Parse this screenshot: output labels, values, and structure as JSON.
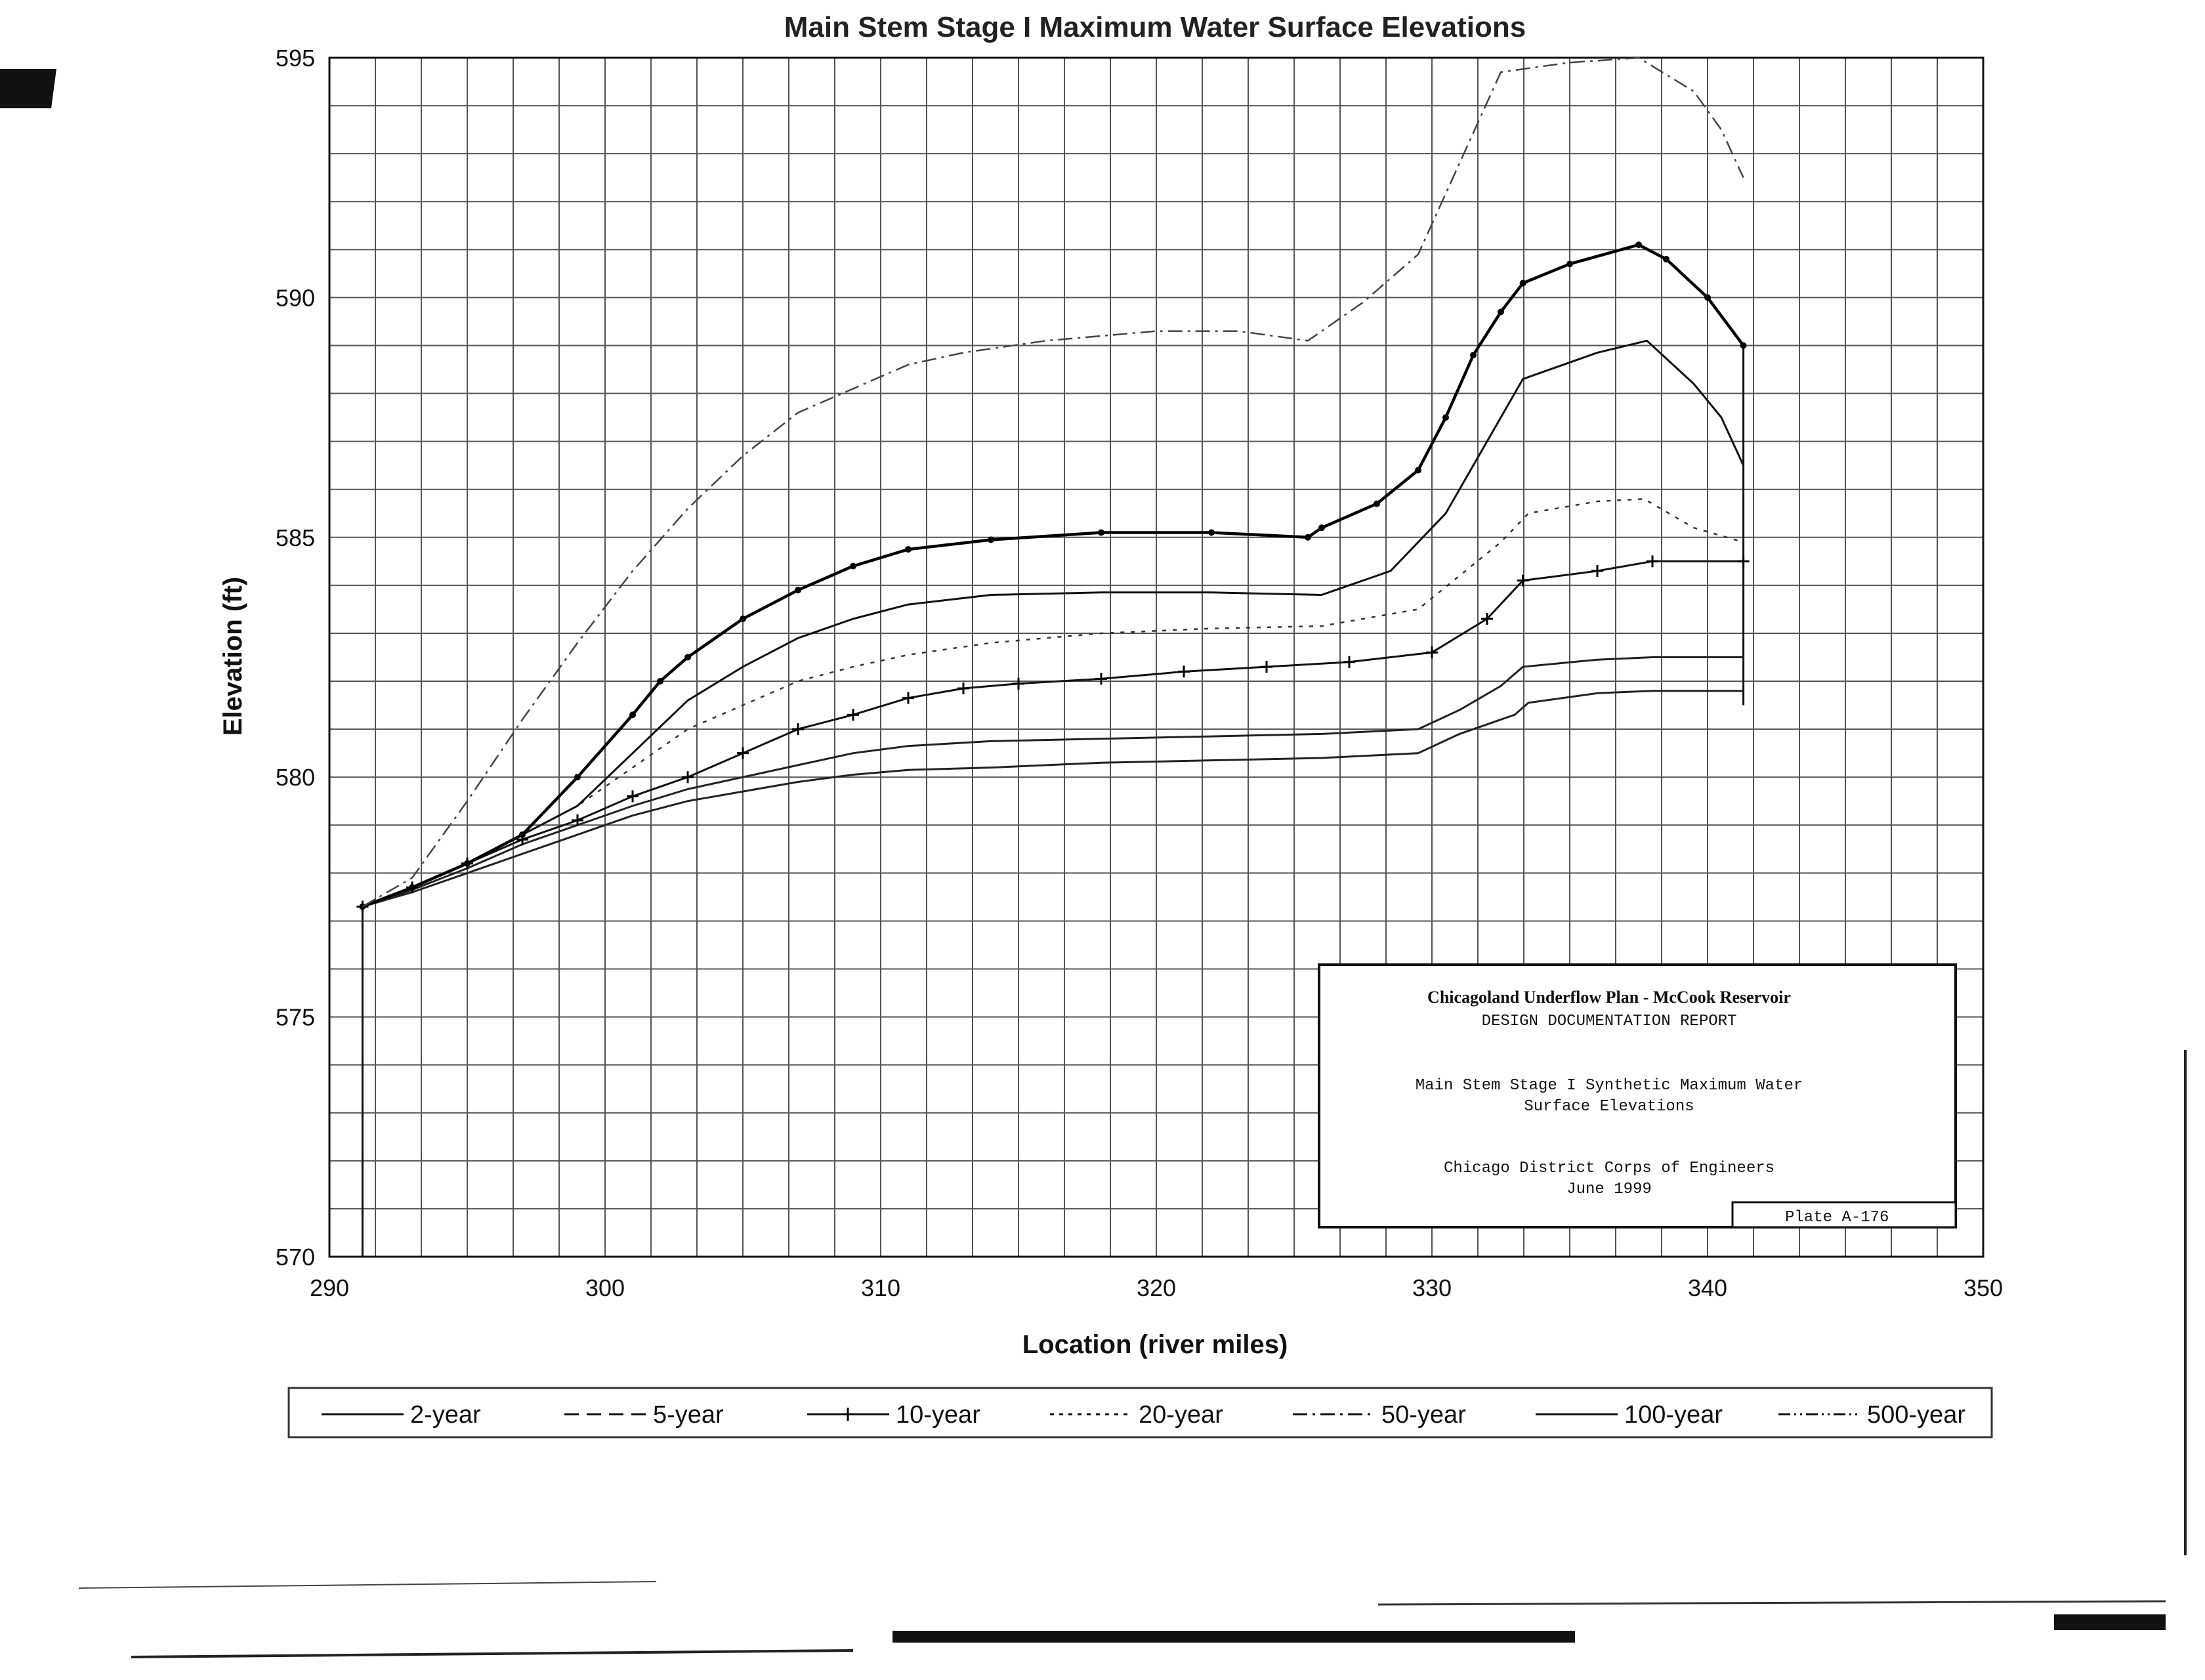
{
  "chart_data": {
    "type": "line",
    "title": "Main Stem Stage I Maximum Water Surface Elevations",
    "xlabel": "Location (river miles)",
    "ylabel": "Elevation (ft)",
    "xlim": [
      290,
      350
    ],
    "ylim": [
      570,
      595
    ],
    "x_ticks": [
      "290",
      "300",
      "310",
      "320",
      "330",
      "340",
      "350"
    ],
    "y_ticks": [
      "570",
      "575",
      "580",
      "585",
      "590",
      "595"
    ],
    "grid": true,
    "legend_position": "bottom",
    "series": [
      {
        "name": "2-year",
        "color": "#222222",
        "x": [
          291.2,
          293,
          295,
          297,
          299,
          301,
          303,
          305,
          307,
          309,
          311,
          314,
          318,
          322,
          326,
          329.5,
          331,
          333,
          333.5,
          336,
          338,
          341.3
        ],
        "y": [
          577.3,
          577.6,
          578.0,
          578.4,
          578.8,
          579.2,
          579.5,
          579.7,
          579.9,
          580.05,
          580.15,
          580.2,
          580.3,
          580.35,
          580.4,
          580.5,
          580.9,
          581.3,
          581.55,
          581.75,
          581.8,
          581.8
        ]
      },
      {
        "name": "5-year",
        "color": "#222222",
        "x": [
          291.2,
          293,
          295,
          297,
          299,
          301,
          303,
          305,
          307,
          309,
          311,
          314,
          318,
          322,
          326,
          329.5,
          331,
          332.5,
          333.3,
          336,
          338,
          341.3
        ],
        "y": [
          577.3,
          577.65,
          578.1,
          578.6,
          579.0,
          579.4,
          579.75,
          580.0,
          580.25,
          580.5,
          580.65,
          580.75,
          580.8,
          580.85,
          580.9,
          581.0,
          581.4,
          581.9,
          582.3,
          582.45,
          582.5,
          582.5
        ]
      },
      {
        "name": "10-year",
        "color": "#111111",
        "markers": true,
        "x": [
          291.2,
          293,
          295,
          297,
          299,
          301,
          303,
          305,
          307,
          309,
          311,
          313,
          315,
          318,
          321,
          324,
          327,
          330,
          332,
          333.3,
          336,
          338,
          341.3
        ],
        "y": [
          577.3,
          577.7,
          578.2,
          578.7,
          579.1,
          579.6,
          580.0,
          580.5,
          581.0,
          581.3,
          581.65,
          581.85,
          581.95,
          582.05,
          582.2,
          582.3,
          582.4,
          582.6,
          583.3,
          584.1,
          584.3,
          584.5,
          584.5
        ]
      },
      {
        "name": "20-year",
        "color": "#333333",
        "x": [
          291.2,
          293,
          295,
          297,
          299,
          301,
          303,
          305,
          307,
          309,
          311,
          314,
          318,
          322,
          326,
          329.5,
          331,
          332.5,
          333.5,
          336,
          337.7,
          339.5,
          341.3
        ],
        "y": [
          577.3,
          577.7,
          578.2,
          578.8,
          579.4,
          580.2,
          581.0,
          581.5,
          582.0,
          582.3,
          582.55,
          582.8,
          583.0,
          583.1,
          583.15,
          583.5,
          584.2,
          584.9,
          585.5,
          585.75,
          585.8,
          585.2,
          584.9
        ]
      },
      {
        "name": "50-year",
        "color": "#111111",
        "x": [
          291.2,
          293,
          295,
          297,
          299,
          301,
          303,
          305,
          307,
          309,
          311,
          314,
          318,
          322,
          326,
          328.5,
          330.5,
          332,
          333.3,
          336,
          337.8,
          339.5,
          340.5,
          341.3
        ],
        "y": [
          577.3,
          577.7,
          578.2,
          578.8,
          579.4,
          580.5,
          581.6,
          582.3,
          582.9,
          583.3,
          583.6,
          583.8,
          583.85,
          583.85,
          583.8,
          584.3,
          585.5,
          587.0,
          588.3,
          588.85,
          589.1,
          588.2,
          587.5,
          586.5
        ]
      },
      {
        "name": "100-year",
        "color": "#000000",
        "markers": true,
        "x": [
          291.2,
          293,
          295,
          297,
          299,
          301,
          302,
          303,
          305,
          307,
          309,
          311,
          314,
          318,
          322,
          325.5,
          326,
          328,
          329.5,
          330.5,
          331.5,
          332.5,
          333.3,
          335,
          337.5,
          338.5,
          340,
          341.3
        ],
        "y": [
          577.3,
          577.7,
          578.2,
          578.8,
          580.0,
          581.3,
          582.0,
          582.5,
          583.3,
          583.9,
          584.4,
          584.75,
          584.95,
          585.1,
          585.1,
          585.0,
          585.2,
          585.7,
          586.4,
          587.5,
          588.8,
          589.7,
          590.3,
          590.7,
          591.1,
          590.8,
          590.0,
          589.0
        ]
      },
      {
        "name": "500-year",
        "color": "#444444",
        "x": [
          291.2,
          293,
          295,
          297,
          299,
          301,
          303,
          305,
          307,
          309,
          311,
          313,
          316,
          320,
          323,
          325.5,
          327.5,
          329.5,
          331,
          332.5,
          335,
          337.5,
          339.5,
          340.5,
          341.3
        ],
        "y": [
          577.3,
          577.9,
          579.5,
          581.2,
          582.8,
          584.3,
          585.6,
          586.7,
          587.6,
          588.1,
          588.6,
          588.85,
          589.1,
          589.3,
          589.3,
          589.1,
          589.9,
          590.9,
          592.8,
          594.7,
          594.9,
          595.0,
          594.3,
          593.5,
          592.5
        ]
      }
    ]
  },
  "info_box": {
    "line1": "Chicagoland Underflow Plan - McCook Reservoir",
    "line2": "DESIGN DOCUMENTATION REPORT",
    "line3": "Main Stem Stage I Synthetic Maximum Water",
    "line4": "Surface Elevations",
    "line5": "Chicago District  Corps of Engineers",
    "line6": "June 1999",
    "plate": "Plate A-176"
  }
}
